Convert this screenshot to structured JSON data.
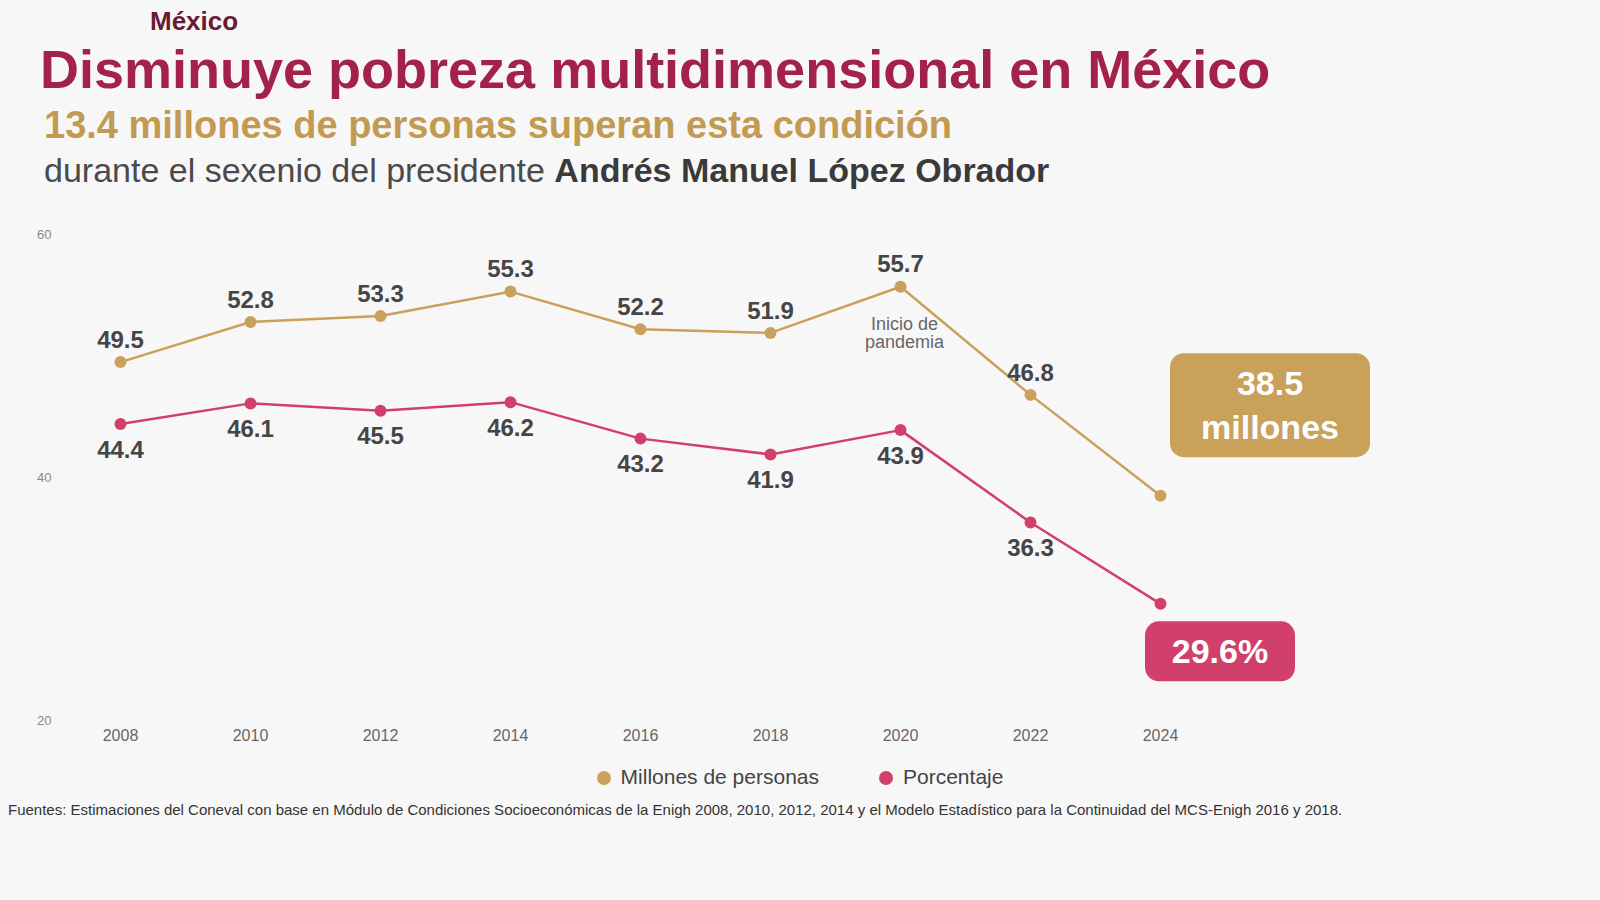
{
  "chart_data": {
    "type": "line",
    "header": "México",
    "title": "Disminuye pobreza multidimensional en México",
    "subtitle": "13.4 millones de personas superan esta condición",
    "subtitle2": {
      "text": "durante el sexenio del presidente",
      "emphasis": "Andrés Manuel López Obrador"
    },
    "x": [
      2008,
      2010,
      2012,
      2014,
      2016,
      2018,
      2020,
      2022,
      2024
    ],
    "xlim": [
      2008,
      2024
    ],
    "xticks": [
      2008,
      2010,
      2012,
      2014,
      2016,
      2018,
      2020,
      2022,
      2024
    ],
    "ylim": [
      20,
      60
    ],
    "yticks": [
      20,
      40,
      60
    ],
    "grid": false,
    "legend": "bottom",
    "data_labels": true,
    "marker": "circle",
    "series": [
      {
        "name": "Millones de personas",
        "color": "#c9a15a",
        "values": [
          49.5,
          52.8,
          53.3,
          55.3,
          52.2,
          51.9,
          55.7,
          46.8,
          38.5
        ],
        "value_labels": [
          "49.5",
          "52.8",
          "53.3",
          "55.3",
          "52.2",
          "51.9",
          "55.7",
          "46.8",
          "38.5 millones"
        ]
      },
      {
        "name": "Porcentaje",
        "color": "#d0406a",
        "values": [
          44.4,
          46.1,
          45.5,
          46.2,
          43.2,
          41.9,
          43.9,
          36.3,
          29.6
        ],
        "value_labels": [
          "44.4",
          "46.1",
          "45.5",
          "46.2",
          "43.2",
          "41.9",
          "43.9",
          "36.3",
          "29.6%"
        ]
      }
    ],
    "annotations": [
      {
        "x": 2020,
        "text": "Inicio de pandemia"
      }
    ],
    "caption": "Fuentes: Estimaciones del Coneval con base en Módulo de Condiciones Socioeconómicas de la Enigh 2008, 2010, 2012, 2014 y el Modelo Estadístico para la Continuidad del MCS-Enigh 2016 y 2018."
  }
}
